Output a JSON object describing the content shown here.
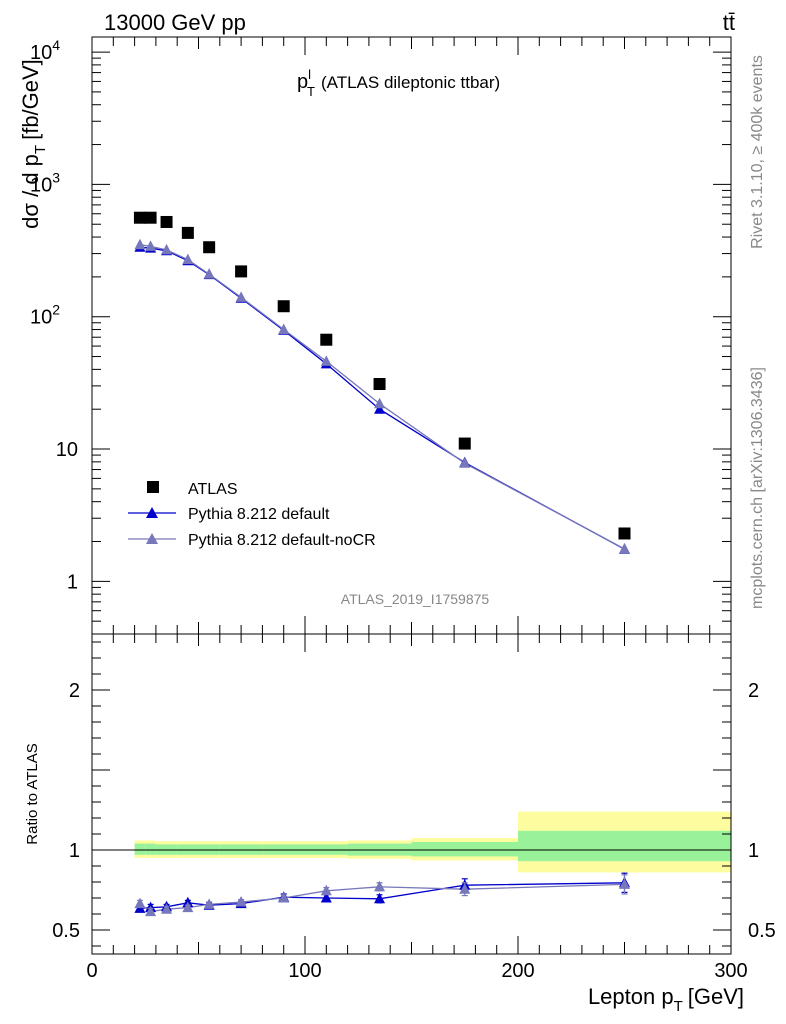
{
  "header": {
    "energy_label": "13000 GeV pp",
    "process_label": "tt̄"
  },
  "side_labels": {
    "rivet": "Rivet 3.1.10, ≥ 400k events",
    "source": "mcplots.cern.ch [arXiv:1306.3436]"
  },
  "chart_data": [
    {
      "type": "scatter",
      "panel": "main",
      "title_main": "p",
      "title_sup": "l",
      "title_sub": "T",
      "title_rest": "(ATLAS dileptonic ttbar)",
      "ylabel_main": "dσ / d p",
      "ylabel_sub": "T",
      "ylabel_unit": "[fb/GeV]",
      "yscale": "log",
      "ylim": [
        0.4,
        13000
      ],
      "xlim": [
        0,
        300
      ],
      "y_tick_labels": [
        {
          "value": 1,
          "label": "1"
        },
        {
          "value": 10,
          "label": "10"
        },
        {
          "value": 100,
          "label": "10",
          "exp": "2"
        },
        {
          "value": 1000,
          "label": "10",
          "exp": "3"
        },
        {
          "value": 10000,
          "label": "10",
          "exp": "4"
        }
      ],
      "watermark": "ATLAS_2019_I1759875",
      "legend_position": "bottom-left",
      "x": [
        22.5,
        27.5,
        35,
        45,
        55,
        70,
        90,
        110,
        135,
        175,
        250
      ],
      "series": [
        {
          "name": "ATLAS",
          "color": "#000000",
          "marker": "square",
          "values": [
            560,
            560,
            520,
            430,
            335,
            220,
            120,
            67,
            31,
            11,
            2.3
          ]
        },
        {
          "name": "Pythia 8.212 default",
          "color": "#0000cc",
          "marker": "triangle",
          "values": [
            335,
            330,
            315,
            265,
            208,
            138,
            79,
            44,
            20,
            7.9,
            1.75
          ]
        },
        {
          "name": "Pythia 8.212 default-noCR",
          "color": "#7777bb",
          "marker": "triangle",
          "values": [
            350,
            340,
            320,
            270,
            210,
            140,
            80,
            46,
            22,
            7.8,
            1.76
          ]
        }
      ]
    },
    {
      "type": "line",
      "panel": "ratio",
      "ylabel": "Ratio to ATLAS",
      "ylim": [
        0.35,
        2.35
      ],
      "xlim": [
        0,
        300
      ],
      "xlabel_main": "Lepton p",
      "xlabel_sub": "T",
      "xlabel_unit": "[GeV]",
      "x_tick_labels": [
        {
          "value": 0,
          "label": "0"
        },
        {
          "value": 100,
          "label": "100"
        },
        {
          "value": 200,
          "label": "200"
        },
        {
          "value": 300,
          "label": "300"
        }
      ],
      "y_tick_labels": [
        {
          "value": 0.5,
          "label": "0.5"
        },
        {
          "value": 1,
          "label": "1"
        },
        {
          "value": 2,
          "label": "2"
        }
      ],
      "band_colors": {
        "stat": "#99f299",
        "total": "#fdfd9f"
      },
      "bands": [
        {
          "x0": 20,
          "x1": 25,
          "stat": [
            0.97,
            1.04
          ],
          "total": [
            0.95,
            1.06
          ]
        },
        {
          "x0": 25,
          "x1": 30,
          "stat": [
            0.97,
            1.04
          ],
          "total": [
            0.95,
            1.06
          ]
        },
        {
          "x0": 30,
          "x1": 40,
          "stat": [
            0.97,
            1.035
          ],
          "total": [
            0.95,
            1.055
          ]
        },
        {
          "x0": 40,
          "x1": 50,
          "stat": [
            0.97,
            1.035
          ],
          "total": [
            0.95,
            1.055
          ]
        },
        {
          "x0": 50,
          "x1": 60,
          "stat": [
            0.97,
            1.035
          ],
          "total": [
            0.95,
            1.055
          ]
        },
        {
          "x0": 60,
          "x1": 80,
          "stat": [
            0.97,
            1.035
          ],
          "total": [
            0.95,
            1.055
          ]
        },
        {
          "x0": 80,
          "x1": 100,
          "stat": [
            0.97,
            1.035
          ],
          "total": [
            0.95,
            1.055
          ]
        },
        {
          "x0": 100,
          "x1": 120,
          "stat": [
            0.97,
            1.035
          ],
          "total": [
            0.95,
            1.055
          ]
        },
        {
          "x0": 120,
          "x1": 150,
          "stat": [
            0.965,
            1.04
          ],
          "total": [
            0.945,
            1.06
          ]
        },
        {
          "x0": 150,
          "x1": 200,
          "stat": [
            0.96,
            1.05
          ],
          "total": [
            0.935,
            1.075
          ]
        },
        {
          "x0": 200,
          "x1": 300,
          "stat": [
            0.93,
            1.12
          ],
          "total": [
            0.86,
            1.24
          ]
        }
      ],
      "x": [
        22.5,
        27.5,
        35,
        45,
        55,
        70,
        90,
        110,
        135,
        175,
        250
      ],
      "series": [
        {
          "name": "Pythia 8.212 default",
          "color": "#0000cc",
          "marker": "triangle",
          "values": [
            0.635,
            0.64,
            0.645,
            0.67,
            0.655,
            0.665,
            0.705,
            0.7,
            0.695,
            0.78,
            0.795
          ],
          "errors": [
            0.02,
            0.02,
            0.015,
            0.015,
            0.015,
            0.015,
            0.02,
            0.02,
            0.025,
            0.04,
            0.06
          ]
        },
        {
          "name": "Pythia 8.212 default-noCR",
          "color": "#7777bb",
          "marker": "triangle",
          "values": [
            0.665,
            0.615,
            0.63,
            0.64,
            0.66,
            0.675,
            0.7,
            0.745,
            0.77,
            0.755,
            0.785
          ],
          "errors": [
            0.02,
            0.02,
            0.015,
            0.015,
            0.015,
            0.015,
            0.02,
            0.02,
            0.025,
            0.04,
            0.06
          ]
        }
      ]
    }
  ]
}
